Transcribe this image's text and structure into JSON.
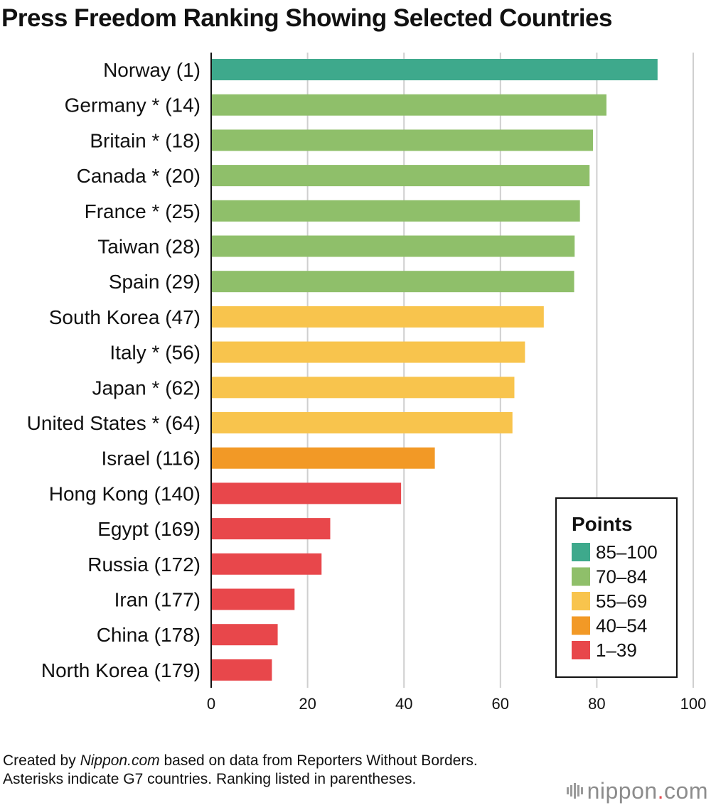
{
  "chart_data": {
    "type": "bar",
    "orientation": "horizontal",
    "title": "Press Freedom Ranking Showing Selected Countries",
    "categories": [
      "Norway (1)",
      "Germany * (14)",
      "Britain * (18)",
      "Canada * (20)",
      "France * (25)",
      "Taiwan (28)",
      "Spain (29)",
      "South Korea (47)",
      "Italy * (56)",
      "Japan * (62)",
      "United States * (64)",
      "Israel (116)",
      "Hong Kong (140)",
      "Egypt (169)",
      "Russia (172)",
      "Iran (177)",
      "China (178)",
      "North Korea (179)"
    ],
    "values": [
      92.6,
      82.0,
      79.2,
      78.5,
      76.5,
      75.4,
      75.3,
      69.0,
      65.1,
      62.9,
      62.5,
      46.4,
      39.4,
      24.7,
      22.9,
      17.3,
      13.8,
      12.6
    ],
    "xlim": [
      0,
      100
    ],
    "xticks": [
      "0",
      "20",
      "40",
      "60",
      "80",
      "100"
    ],
    "grid": true,
    "legend": {
      "title": "Points",
      "placement": "bottom-right",
      "items": [
        {
          "label": "85–100",
          "color": "#3ea98c",
          "min": 85
        },
        {
          "label": "70–84",
          "color": "#8fbf6a",
          "min": 70
        },
        {
          "label": "55–69",
          "color": "#f8c44d",
          "min": 55
        },
        {
          "label": "40–54",
          "color": "#f29926",
          "min": 40
        },
        {
          "label": "1–39",
          "color": "#e8474b",
          "min": 1
        }
      ]
    }
  },
  "source": {
    "prefix": "Created by ",
    "site": "Nippon.com",
    "suffix": " based on data from Reporters Without Borders. Asterisks indicate G7 countries. Ranking listed in parentheses."
  },
  "brand": {
    "name": "nippon",
    "dot": ".",
    "tld": "com"
  }
}
